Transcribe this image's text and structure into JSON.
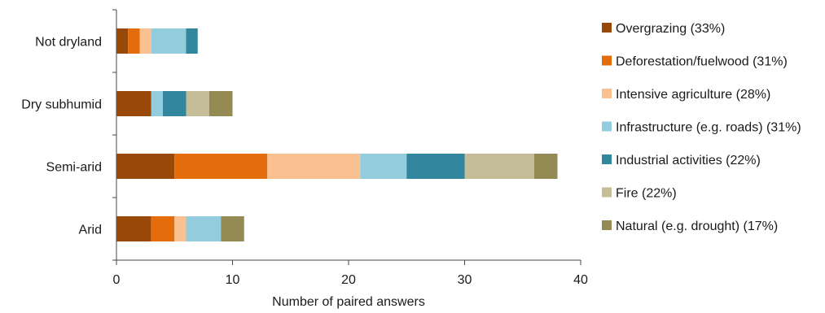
{
  "chart_data": {
    "type": "bar",
    "orientation": "horizontal",
    "stacked": true,
    "categories": [
      "Not dryland",
      "Dry subhumid",
      "Semi-arid",
      "Arid"
    ],
    "series": [
      {
        "name": "Overgrazing (33%)",
        "color": "#984807",
        "values": [
          1,
          3,
          5,
          3
        ]
      },
      {
        "name": "Deforestation/fuelwood (31%)",
        "color": "#e46c0a",
        "values": [
          1,
          0,
          8,
          2
        ]
      },
      {
        "name": "Intensive agriculture (28%)",
        "color": "#fac090",
        "values": [
          1,
          0,
          8,
          1
        ]
      },
      {
        "name": "Infrastructure (e.g. roads) (31%)",
        "color": "#93cddd",
        "values": [
          3,
          1,
          4,
          3
        ]
      },
      {
        "name": "Industrial activities (22%)",
        "color": "#31859c",
        "values": [
          1,
          2,
          5,
          0
        ]
      },
      {
        "name": "Fire (22%)",
        "color": "#c4bd97",
        "values": [
          0,
          2,
          6,
          0
        ]
      },
      {
        "name": "Natural (e.g. drought) (17%)",
        "color": "#948a54",
        "values": [
          0,
          2,
          2,
          2
        ]
      }
    ],
    "xlabel": "Number of paired answers",
    "ylabel": "",
    "xlim": [
      0,
      40
    ],
    "xticks": [
      0,
      10,
      20,
      30,
      40
    ],
    "grid": false,
    "legend_position": "right"
  }
}
